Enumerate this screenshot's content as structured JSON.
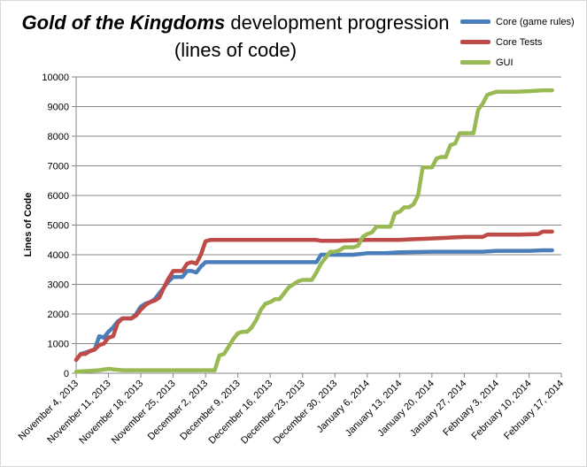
{
  "title": {
    "emphasis": "Gold of the Kingdoms",
    "rest": " development progression",
    "line2": "(lines of code)"
  },
  "chart_data": {
    "type": "line",
    "title": "Gold of the Kingdoms development progression (lines of code)",
    "ylabel": "Lines of Code",
    "xlabel": "",
    "ylim": [
      0,
      10000
    ],
    "xlim": [
      "2013-11-04",
      "2014-02-17"
    ],
    "y_ticks": [
      "0",
      "1000",
      "2000",
      "3000",
      "4000",
      "5000",
      "6000",
      "7000",
      "8000",
      "9000",
      "10000"
    ],
    "x_ticks": [
      "2013-11-04",
      "2013-11-11",
      "2013-11-18",
      "2013-11-25",
      "2013-12-02",
      "2013-12-09",
      "2013-12-16",
      "2013-12-23",
      "2013-12-30",
      "2014-01-06",
      "2014-01-13",
      "2014-01-20",
      "2014-01-27",
      "2014-02-03",
      "2014-02-10",
      "2014-02-17"
    ],
    "x_tick_labels": [
      "November 4, 2013",
      "November 11, 2013",
      "November 18, 2013",
      "November 25, 2013",
      "December 2, 2013",
      "December 9, 2013",
      "December 16, 2013",
      "December 23, 2013",
      "December 30, 2013",
      "January 6, 2014",
      "January 13, 2014",
      "January 20, 2014",
      "January 27, 2014",
      "February 3, 2014",
      "February 10, 2014",
      "February 17, 2014"
    ],
    "grid": "horizontal",
    "legend_position": "top-right",
    "series": [
      {
        "name": "Core (game rules)",
        "color": "#4a7ebb",
        "points": [
          [
            "2013-11-04",
            450
          ],
          [
            "2013-11-05",
            650
          ],
          [
            "2013-11-06",
            700
          ],
          [
            "2013-11-07",
            750
          ],
          [
            "2013-11-08",
            800
          ],
          [
            "2013-11-09",
            1250
          ],
          [
            "2013-11-10",
            1200
          ],
          [
            "2013-11-11",
            1400
          ],
          [
            "2013-11-12",
            1550
          ],
          [
            "2013-11-13",
            1750
          ],
          [
            "2013-11-14",
            1850
          ],
          [
            "2013-11-15",
            1850
          ],
          [
            "2013-11-16",
            1850
          ],
          [
            "2013-11-17",
            2000
          ],
          [
            "2013-11-18",
            2250
          ],
          [
            "2013-11-19",
            2350
          ],
          [
            "2013-11-20",
            2400
          ],
          [
            "2013-11-21",
            2500
          ],
          [
            "2013-11-22",
            2700
          ],
          [
            "2013-11-23",
            2900
          ],
          [
            "2013-11-24",
            3100
          ],
          [
            "2013-11-25",
            3250
          ],
          [
            "2013-11-26",
            3250
          ],
          [
            "2013-11-27",
            3250
          ],
          [
            "2013-11-28",
            3450
          ],
          [
            "2013-11-29",
            3450
          ],
          [
            "2013-11-30",
            3400
          ],
          [
            "2013-12-01",
            3600
          ],
          [
            "2013-12-02",
            3750
          ],
          [
            "2013-12-05",
            3750
          ],
          [
            "2013-12-10",
            3750
          ],
          [
            "2013-12-15",
            3750
          ],
          [
            "2013-12-20",
            3750
          ],
          [
            "2013-12-25",
            3750
          ],
          [
            "2013-12-26",
            3750
          ],
          [
            "2013-12-27",
            4000
          ],
          [
            "2013-12-30",
            4000
          ],
          [
            "2014-01-03",
            4000
          ],
          [
            "2014-01-06",
            4050
          ],
          [
            "2014-01-10",
            4050
          ],
          [
            "2014-01-13",
            4080
          ],
          [
            "2014-01-20",
            4100
          ],
          [
            "2014-01-27",
            4100
          ],
          [
            "2014-01-31",
            4100
          ],
          [
            "2014-02-03",
            4130
          ],
          [
            "2014-02-10",
            4130
          ],
          [
            "2014-02-13",
            4150
          ],
          [
            "2014-02-15",
            4150
          ]
        ]
      },
      {
        "name": "Core Tests",
        "color": "#be4b48",
        "points": [
          [
            "2013-11-04",
            450
          ],
          [
            "2013-11-05",
            650
          ],
          [
            "2013-11-06",
            650
          ],
          [
            "2013-11-07",
            750
          ],
          [
            "2013-11-08",
            800
          ],
          [
            "2013-11-09",
            950
          ],
          [
            "2013-11-10",
            1000
          ],
          [
            "2013-11-11",
            1200
          ],
          [
            "2013-11-12",
            1250
          ],
          [
            "2013-11-13",
            1700
          ],
          [
            "2013-11-14",
            1850
          ],
          [
            "2013-11-15",
            1850
          ],
          [
            "2013-11-16",
            1850
          ],
          [
            "2013-11-17",
            1950
          ],
          [
            "2013-11-18",
            2150
          ],
          [
            "2013-11-19",
            2300
          ],
          [
            "2013-11-20",
            2400
          ],
          [
            "2013-11-21",
            2450
          ],
          [
            "2013-11-22",
            2550
          ],
          [
            "2013-11-23",
            2900
          ],
          [
            "2013-11-24",
            3200
          ],
          [
            "2013-11-25",
            3450
          ],
          [
            "2013-11-26",
            3450
          ],
          [
            "2013-11-27",
            3450
          ],
          [
            "2013-11-28",
            3700
          ],
          [
            "2013-11-29",
            3750
          ],
          [
            "2013-11-30",
            3700
          ],
          [
            "2013-12-01",
            4000
          ],
          [
            "2013-12-02",
            4450
          ],
          [
            "2013-12-03",
            4500
          ],
          [
            "2013-12-10",
            4500
          ],
          [
            "2013-12-20",
            4500
          ],
          [
            "2013-12-26",
            4500
          ],
          [
            "2013-12-27",
            4470
          ],
          [
            "2013-12-30",
            4470
          ],
          [
            "2014-01-06",
            4500
          ],
          [
            "2014-01-13",
            4500
          ],
          [
            "2014-01-15",
            4520
          ],
          [
            "2014-01-20",
            4550
          ],
          [
            "2014-01-27",
            4600
          ],
          [
            "2014-01-31",
            4600
          ],
          [
            "2014-02-01",
            4680
          ],
          [
            "2014-02-08",
            4680
          ],
          [
            "2014-02-12",
            4700
          ],
          [
            "2014-02-13",
            4780
          ],
          [
            "2014-02-15",
            4780
          ]
        ]
      },
      {
        "name": "GUI",
        "color": "#98b954",
        "points": [
          [
            "2013-11-04",
            50
          ],
          [
            "2013-11-09",
            100
          ],
          [
            "2013-11-11",
            150
          ],
          [
            "2013-11-14",
            100
          ],
          [
            "2013-11-20",
            100
          ],
          [
            "2013-11-25",
            100
          ],
          [
            "2013-12-02",
            100
          ],
          [
            "2013-12-04",
            100
          ],
          [
            "2013-12-05",
            600
          ],
          [
            "2013-12-06",
            650
          ],
          [
            "2013-12-07",
            900
          ],
          [
            "2013-12-08",
            1150
          ],
          [
            "2013-12-09",
            1350
          ],
          [
            "2013-12-10",
            1400
          ],
          [
            "2013-12-11",
            1400
          ],
          [
            "2013-12-12",
            1550
          ],
          [
            "2013-12-13",
            1800
          ],
          [
            "2013-12-14",
            2150
          ],
          [
            "2013-12-15",
            2350
          ],
          [
            "2013-12-16",
            2400
          ],
          [
            "2013-12-17",
            2500
          ],
          [
            "2013-12-18",
            2500
          ],
          [
            "2013-12-19",
            2700
          ],
          [
            "2013-12-20",
            2900
          ],
          [
            "2013-12-21",
            3000
          ],
          [
            "2013-12-22",
            3100
          ],
          [
            "2013-12-23",
            3150
          ],
          [
            "2013-12-24",
            3150
          ],
          [
            "2013-12-25",
            3150
          ],
          [
            "2013-12-26",
            3400
          ],
          [
            "2013-12-27",
            3700
          ],
          [
            "2013-12-28",
            3900
          ],
          [
            "2013-12-29",
            4100
          ],
          [
            "2013-12-30",
            4100
          ],
          [
            "2013-12-31",
            4150
          ],
          [
            "2014-01-01",
            4250
          ],
          [
            "2014-01-02",
            4250
          ],
          [
            "2014-01-03",
            4250
          ],
          [
            "2014-01-04",
            4300
          ],
          [
            "2014-01-05",
            4600
          ],
          [
            "2014-01-06",
            4700
          ],
          [
            "2014-01-07",
            4750
          ],
          [
            "2014-01-08",
            4950
          ],
          [
            "2014-01-09",
            4950
          ],
          [
            "2014-01-10",
            4950
          ],
          [
            "2014-01-11",
            4950
          ],
          [
            "2014-01-12",
            5400
          ],
          [
            "2014-01-13",
            5450
          ],
          [
            "2014-01-14",
            5600
          ],
          [
            "2014-01-15",
            5600
          ],
          [
            "2014-01-16",
            5700
          ],
          [
            "2014-01-17",
            6000
          ],
          [
            "2014-01-18",
            6950
          ],
          [
            "2014-01-19",
            6950
          ],
          [
            "2014-01-20",
            6950
          ],
          [
            "2014-01-21",
            7250
          ],
          [
            "2014-01-22",
            7300
          ],
          [
            "2014-01-23",
            7300
          ],
          [
            "2014-01-24",
            7700
          ],
          [
            "2014-01-25",
            7750
          ],
          [
            "2014-01-26",
            8100
          ],
          [
            "2014-01-27",
            8100
          ],
          [
            "2014-01-28",
            8100
          ],
          [
            "2014-01-29",
            8100
          ],
          [
            "2014-01-30",
            8900
          ],
          [
            "2014-01-31",
            9100
          ],
          [
            "2014-02-01",
            9400
          ],
          [
            "2014-02-02",
            9450
          ],
          [
            "2014-02-03",
            9500
          ],
          [
            "2014-02-07",
            9500
          ],
          [
            "2014-02-10",
            9520
          ],
          [
            "2014-02-13",
            9550
          ],
          [
            "2014-02-15",
            9550
          ]
        ]
      }
    ]
  }
}
